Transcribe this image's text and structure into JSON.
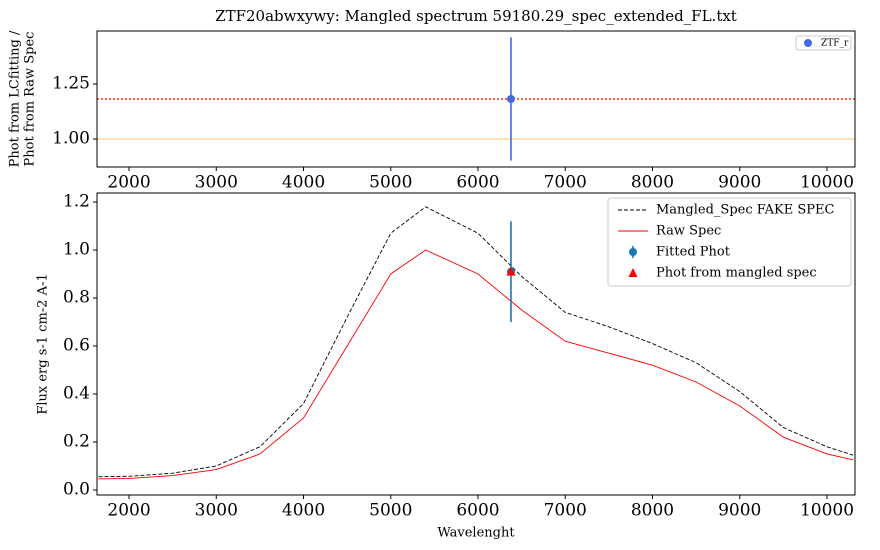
{
  "chart_data": [
    {
      "type": "scatter",
      "title": "ZTF20abwxywy: Mangled spectrum 59180.29_spec_extended_FL.txt",
      "ylabel": [
        "Phot from LCfitting /",
        "Phot from Raw Spec"
      ],
      "xlim": [
        1633,
        10321
      ],
      "xticks": [
        2000,
        3000,
        4000,
        5000,
        6000,
        7000,
        8000,
        9000,
        10000
      ],
      "ylim": [
        0.873,
        1.491
      ],
      "yticks": [
        {
          "value": 1.0,
          "label": "1.00"
        },
        {
          "value": 1.25,
          "label": "1.25"
        }
      ],
      "hlines": [
        {
          "value": 1.0,
          "color": "#f8dca0",
          "style": "solid"
        },
        {
          "value": 1.182,
          "color": "#ff2a00",
          "style": "dotted"
        }
      ],
      "series": [
        {
          "name": "ZTF_r",
          "kind": "errorbar",
          "color": "#4169e1",
          "x": [
            6378
          ],
          "values": [
            1.182
          ],
          "errors": [
            0.28
          ]
        }
      ],
      "legend": "upper right"
    },
    {
      "type": "line",
      "xlabel": "Wavelenght",
      "ylabel": "Flux erg s-1 cm-2 A-1",
      "xlim": [
        1633,
        10321
      ],
      "xticks": [
        2000,
        3000,
        4000,
        5000,
        6000,
        7000,
        8000,
        9000,
        10000
      ],
      "ylim": [
        -0.021,
        1.2375
      ],
      "yticks": [
        {
          "value": 0.0,
          "label": "0.0"
        },
        0.2,
        0.4,
        0.6,
        0.8,
        {
          "value": 1.0,
          "label": "1.0"
        },
        1.2
      ],
      "series": [
        {
          "name": "Mangled_Spec FAKE SPEC",
          "kind": "line",
          "style": "dashed",
          "color": "#000000",
          "x": [
            1650,
            2000,
            2500,
            3000,
            3500,
            4000,
            4500,
            5000,
            5400,
            6000,
            6500,
            7000,
            7500,
            8000,
            8500,
            9000,
            9500,
            10000,
            10300
          ],
          "values": [
            0.055,
            0.057,
            0.07,
            0.1,
            0.18,
            0.36,
            0.72,
            1.07,
            1.18,
            1.07,
            0.89,
            0.74,
            0.68,
            0.61,
            0.53,
            0.41,
            0.26,
            0.18,
            0.145
          ]
        },
        {
          "name": "Raw Spec",
          "kind": "line",
          "style": "solid",
          "color": "#ff0000",
          "x": [
            1650,
            2000,
            2500,
            3000,
            3500,
            4000,
            4500,
            5000,
            5400,
            6000,
            6500,
            7000,
            7500,
            8000,
            8500,
            9000,
            9500,
            10000,
            10300
          ],
          "values": [
            0.046,
            0.048,
            0.06,
            0.085,
            0.15,
            0.3,
            0.6,
            0.9,
            1.0,
            0.9,
            0.75,
            0.62,
            0.57,
            0.52,
            0.45,
            0.35,
            0.22,
            0.15,
            0.125
          ]
        },
        {
          "name": "Fitted Phot",
          "kind": "errorbar",
          "color": "#1f77b4",
          "x": [
            6378
          ],
          "values": [
            0.91
          ],
          "errors": [
            0.21
          ]
        },
        {
          "name": "Phot from mangled spec",
          "kind": "marker",
          "color": "#ff0000",
          "x": [
            6378
          ],
          "values": [
            0.91
          ]
        }
      ],
      "legend": "upper right"
    }
  ]
}
